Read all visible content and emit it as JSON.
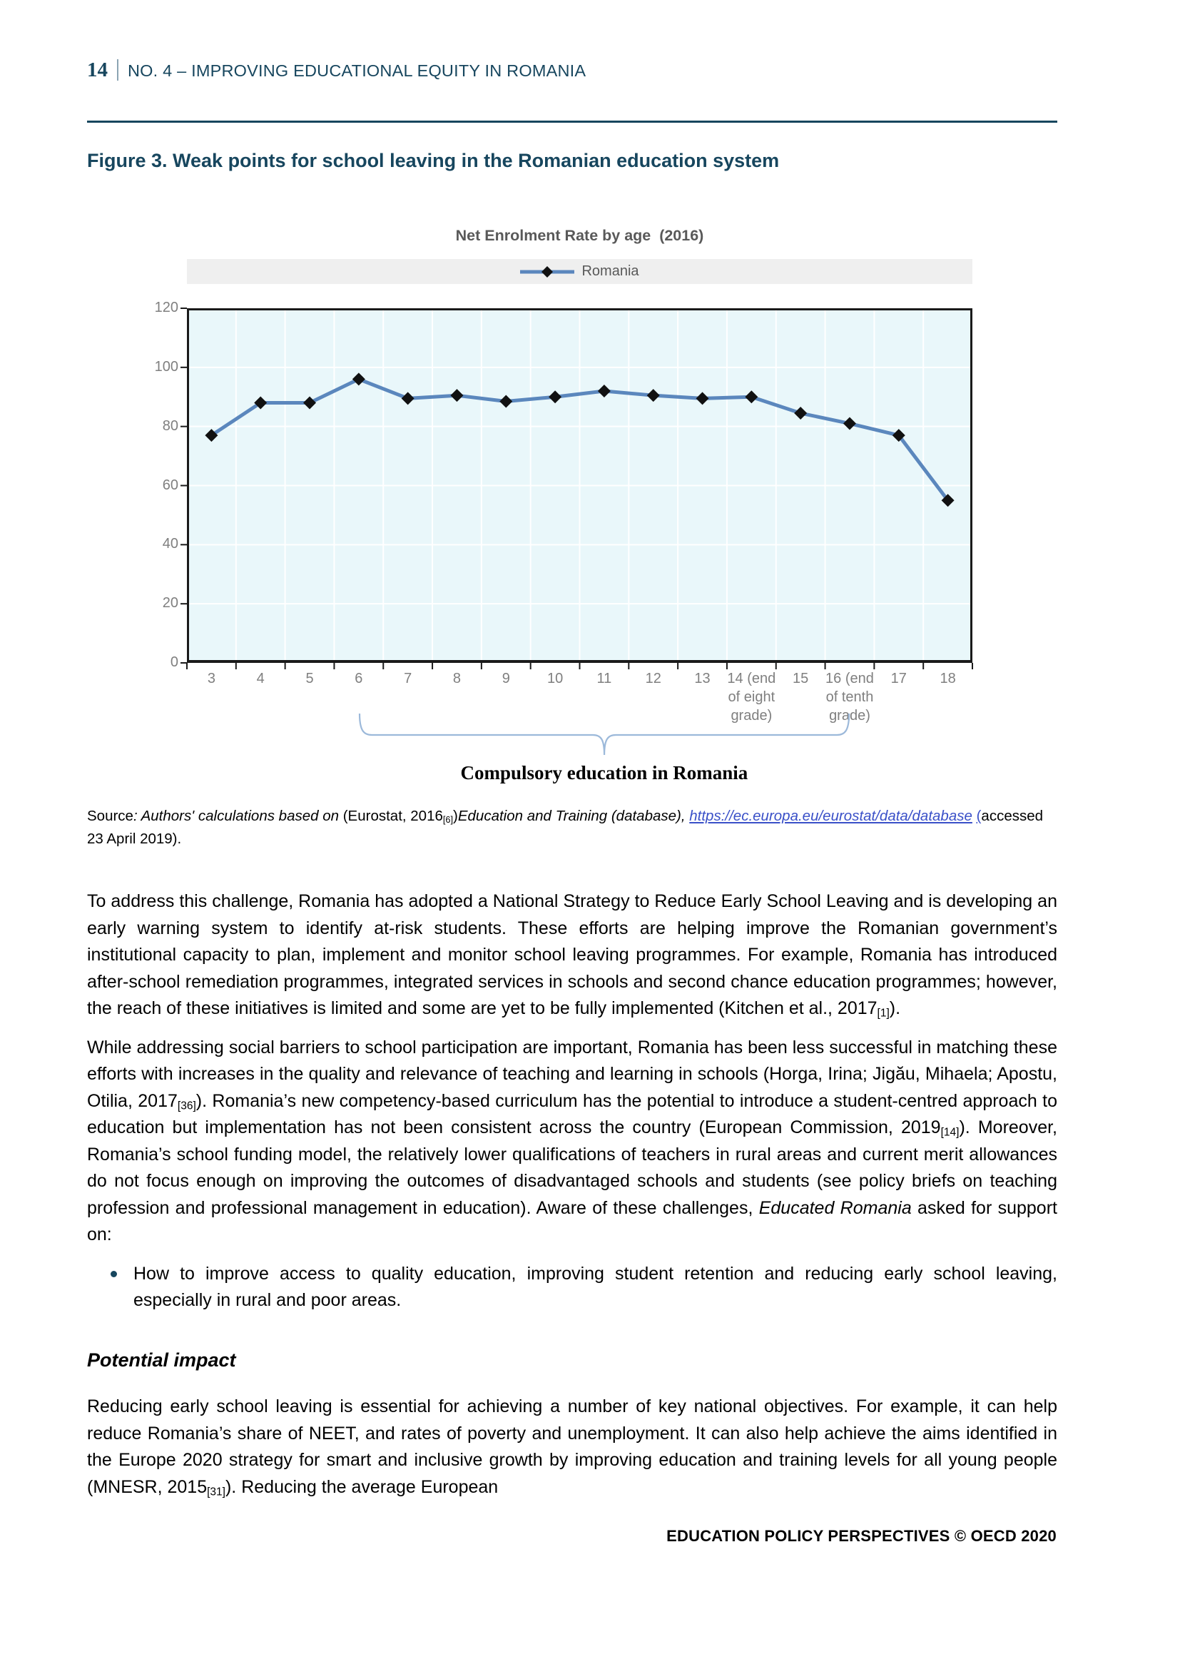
{
  "header": {
    "page_number": "14",
    "title": "NO. 4 – IMPROVING EDUCATIONAL EQUITY IN ROMANIA"
  },
  "figure": {
    "title": "Figure 3. Weak points for school leaving in the Romanian education system",
    "source": {
      "segments": [
        {
          "t": "Source",
          "s": ""
        },
        {
          "t": ": Authors' calculations based on ",
          "s": "i"
        },
        {
          "t": "(Eurostat, 2016",
          "s": ""
        },
        {
          "t": "[6]",
          "s": "sub"
        },
        {
          "t": ")",
          "s": ""
        },
        {
          "t": "Education and Training (database), ",
          "s": "i"
        },
        {
          "t": "https://ec.europa.eu/eurostat/data/database",
          "s": "link"
        },
        {
          "t": " ",
          "s": ""
        },
        {
          "t": "(",
          "s": "linku"
        },
        {
          "t": "accessed 23 April 2019).",
          "s": ""
        }
      ]
    }
  },
  "chart_data": {
    "type": "line",
    "title": "Net Enrolment Rate by age  (2016)",
    "categories": [
      "3",
      "4",
      "5",
      "6",
      "7",
      "8",
      "9",
      "10",
      "11",
      "12",
      "13",
      "14 (end\nof eight\ngrade)",
      "15",
      "16 (end\nof tenth\ngrade)",
      "17",
      "18"
    ],
    "series": [
      {
        "name": "Romania",
        "values": [
          77,
          88,
          88,
          96,
          89.5,
          90.5,
          88.5,
          90,
          92,
          90.5,
          89.5,
          90,
          84.5,
          81,
          77,
          55
        ]
      }
    ],
    "ylim": [
      0,
      120
    ],
    "yticks": [
      0,
      20,
      40,
      60,
      80,
      100,
      120
    ],
    "grid": true,
    "legend_position": "top",
    "marker": "diamond",
    "colors": {
      "line": "#5b87bd",
      "marker": "#111111",
      "plot_bg": "#e9f7fa",
      "grid": "#ffffff",
      "axis": "#1a1a1a",
      "axis_text": "#7f7f7f",
      "title_text": "#595959",
      "legend_bg": "#efefef"
    },
    "brace": {
      "label": "Compulsory education in Romania",
      "from_index": 3,
      "to_index": 13,
      "color": "#9cb9da"
    }
  },
  "body": {
    "paragraphs": [
      {
        "segments": [
          {
            "t": "To address this challenge, Romania has adopted a National Strategy to Reduce Early School Leaving and is developing an early warning system to identify at-risk students. These efforts are helping improve the Romanian government’s institutional capacity to plan, implement and monitor school leaving programmes. For example, Romania has introduced after-school remediation programmes, integrated services in schools and second chance education programmes; however, the reach of these initiatives is limited and some are yet to be fully implemented (Kitchen et al., 2017",
            "s": ""
          },
          {
            "t": "[1]",
            "s": "sub"
          },
          {
            "t": ").",
            "s": ""
          }
        ]
      },
      {
        "segments": [
          {
            "t": "While addressing social barriers to school participation are important, Romania has been less successful in matching these efforts with increases in the quality and relevance of teaching and learning in schools (Horga, Irina; Jigău, Mihaela; Apostu, Otilia, 2017",
            "s": ""
          },
          {
            "t": "[36]",
            "s": "sub"
          },
          {
            "t": "). Romania’s new competency-based curriculum has the potential to introduce a student-centred approach to education but implementation has not been consistent across the country (European Commission, 2019",
            "s": ""
          },
          {
            "t": "[14]",
            "s": "sub"
          },
          {
            "t": "). Moreover, Romania’s school funding model, the relatively lower qualifications of teachers in rural areas and current merit allowances do not focus enough on improving the outcomes of disadvantaged schools and students (see policy briefs on teaching profession and professional management in education). Aware of these challenges, ",
            "s": ""
          },
          {
            "t": "Educated Romania",
            "s": "i"
          },
          {
            "t": " asked for support on:",
            "s": ""
          }
        ]
      }
    ],
    "bullets": [
      {
        "segments": [
          {
            "t": "How to improve access to quality education, improving student retention and reducing early school leaving, especially in rural and poor areas.",
            "s": ""
          }
        ]
      }
    ],
    "heading": "Potential impact",
    "paragraphs_after": [
      {
        "segments": [
          {
            "t": "Reducing early school leaving is essential for achieving a number of key national objectives. For example, it can help reduce Romania’s share of NEET, and rates of poverty and unemployment. It can also help achieve the aims identified in the Europe 2020 strategy for smart and inclusive growth by improving education and training levels for all young people (MNESR, 2015",
            "s": ""
          },
          {
            "t": "[31]",
            "s": "sub"
          },
          {
            "t": "). Reducing the average European",
            "s": ""
          }
        ]
      }
    ]
  },
  "footer": {
    "text": "EDUCATION POLICY PERSPECTIVES © OECD 2020"
  }
}
